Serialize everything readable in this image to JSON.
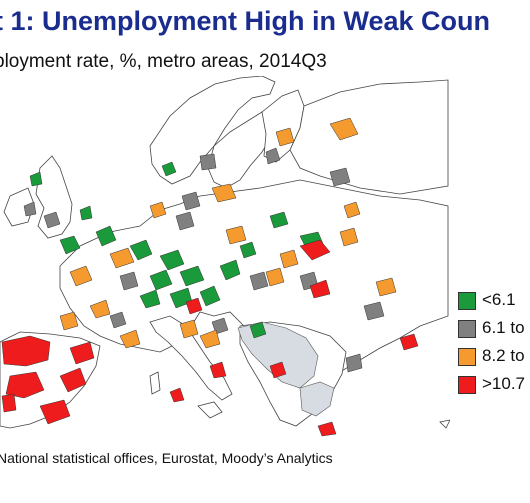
{
  "title": "t 1: Unemployment High in Weak Coun",
  "subtitle": "ployment rate, %, metro areas, 2014Q3",
  "legend": {
    "items": [
      {
        "label": "<6.1",
        "color": "#1a9a3a"
      },
      {
        "label": "6.1 to",
        "color": "#808080"
      },
      {
        "label": "8.2 to",
        "color": "#f59a2e"
      },
      {
        "label": ">10.7",
        "color": "#ee1c1c"
      }
    ]
  },
  "source": "National statistical offices, Eurostat, Moody’s Analytics"
}
